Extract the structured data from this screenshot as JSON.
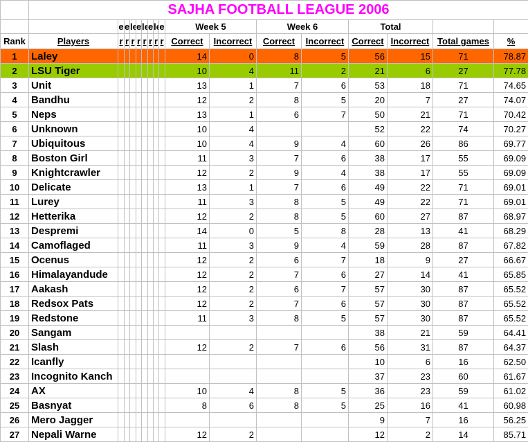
{
  "title": "SAJHA FOOTBALL LEAGUE 2006",
  "colors": {
    "first_place": "#ff6600",
    "second_place": "#99cc00",
    "title": "#ff00ff"
  },
  "group_headers": {
    "week5": "Week 5",
    "week6": "Week 6",
    "total": "Total"
  },
  "narrow_headers_top": [
    "e",
    "e",
    "le",
    "e",
    "le",
    "e",
    "le",
    "e"
  ],
  "narrow_headers_bottom": [
    "r",
    "r",
    "r",
    "r",
    "r",
    "r",
    "r",
    "r"
  ],
  "columns": {
    "rank": "Rank",
    "players": "Players",
    "w5_correct": "Correct",
    "w5_incorrect": "Incorrect",
    "w6_correct": "Correct",
    "w6_incorrect": "Incorrect",
    "total_correct": "Correct",
    "total_incorrect": "Incorrect",
    "total_games": "Total games",
    "pct": "%"
  },
  "rows": [
    [
      "1",
      "Laley",
      "14",
      "0",
      "8",
      "5",
      "56",
      "15",
      "71",
      "78.87"
    ],
    [
      "2",
      "LSU Tiger",
      "10",
      "4",
      "11",
      "2",
      "21",
      "6",
      "27",
      "77.78"
    ],
    [
      "3",
      "Unit",
      "13",
      "1",
      "7",
      "6",
      "53",
      "18",
      "71",
      "74.65"
    ],
    [
      "4",
      "Bandhu",
      "12",
      "2",
      "8",
      "5",
      "20",
      "7",
      "27",
      "74.07"
    ],
    [
      "5",
      "Neps",
      "13",
      "1",
      "6",
      "7",
      "50",
      "21",
      "71",
      "70.42"
    ],
    [
      "6",
      "Unknown",
      "10",
      "4",
      "",
      "",
      "52",
      "22",
      "74",
      "70.27"
    ],
    [
      "7",
      "Ubiquitous",
      "10",
      "4",
      "9",
      "4",
      "60",
      "26",
      "86",
      "69.77"
    ],
    [
      "8",
      "Boston Girl",
      "11",
      "3",
      "7",
      "6",
      "38",
      "17",
      "55",
      "69.09"
    ],
    [
      "9",
      "Knightcrawler",
      "12",
      "2",
      "9",
      "4",
      "38",
      "17",
      "55",
      "69.09"
    ],
    [
      "10",
      "Delicate",
      "13",
      "1",
      "7",
      "6",
      "49",
      "22",
      "71",
      "69.01"
    ],
    [
      "11",
      "Lurey",
      "11",
      "3",
      "8",
      "5",
      "49",
      "22",
      "71",
      "69.01"
    ],
    [
      "12",
      "Hetterika",
      "12",
      "2",
      "8",
      "5",
      "60",
      "27",
      "87",
      "68.97"
    ],
    [
      "13",
      "Despremi",
      "14",
      "0",
      "5",
      "8",
      "28",
      "13",
      "41",
      "68.29"
    ],
    [
      "14",
      "Camoflaged",
      "11",
      "3",
      "9",
      "4",
      "59",
      "28",
      "87",
      "67.82"
    ],
    [
      "15",
      "Ocenus",
      "12",
      "2",
      "6",
      "7",
      "18",
      "9",
      "27",
      "66.67"
    ],
    [
      "16",
      "Himalayandude",
      "12",
      "2",
      "7",
      "6",
      "27",
      "14",
      "41",
      "65.85"
    ],
    [
      "17",
      "Aakash",
      "12",
      "2",
      "6",
      "7",
      "57",
      "30",
      "87",
      "65.52"
    ],
    [
      "18",
      "Redsox Pats",
      "12",
      "2",
      "7",
      "6",
      "57",
      "30",
      "87",
      "65.52"
    ],
    [
      "19",
      "Redstone",
      "11",
      "3",
      "8",
      "5",
      "57",
      "30",
      "87",
      "65.52"
    ],
    [
      "20",
      "Sangam",
      "",
      "",
      "",
      "",
      "38",
      "21",
      "59",
      "64.41"
    ],
    [
      "21",
      "Slash",
      "12",
      "2",
      "7",
      "6",
      "56",
      "31",
      "87",
      "64.37"
    ],
    [
      "22",
      "Icanfly",
      "",
      "",
      "",
      "",
      "10",
      "6",
      "16",
      "62.50"
    ],
    [
      "23",
      "Incognito Kanch",
      "",
      "",
      "",
      "",
      "37",
      "23",
      "60",
      "61.67"
    ],
    [
      "24",
      "AX",
      "10",
      "4",
      "8",
      "5",
      "36",
      "23",
      "59",
      "61.02"
    ],
    [
      "25",
      "Basnyat",
      "8",
      "6",
      "8",
      "5",
      "25",
      "16",
      "41",
      "60.98"
    ],
    [
      "26",
      "Mero Jagger",
      "",
      "",
      "",
      "",
      "9",
      "7",
      "16",
      "56.25"
    ],
    [
      "27",
      "Nepali Warne",
      "12",
      "2",
      "",
      "",
      "12",
      "2",
      "14",
      "85.71"
    ]
  ]
}
